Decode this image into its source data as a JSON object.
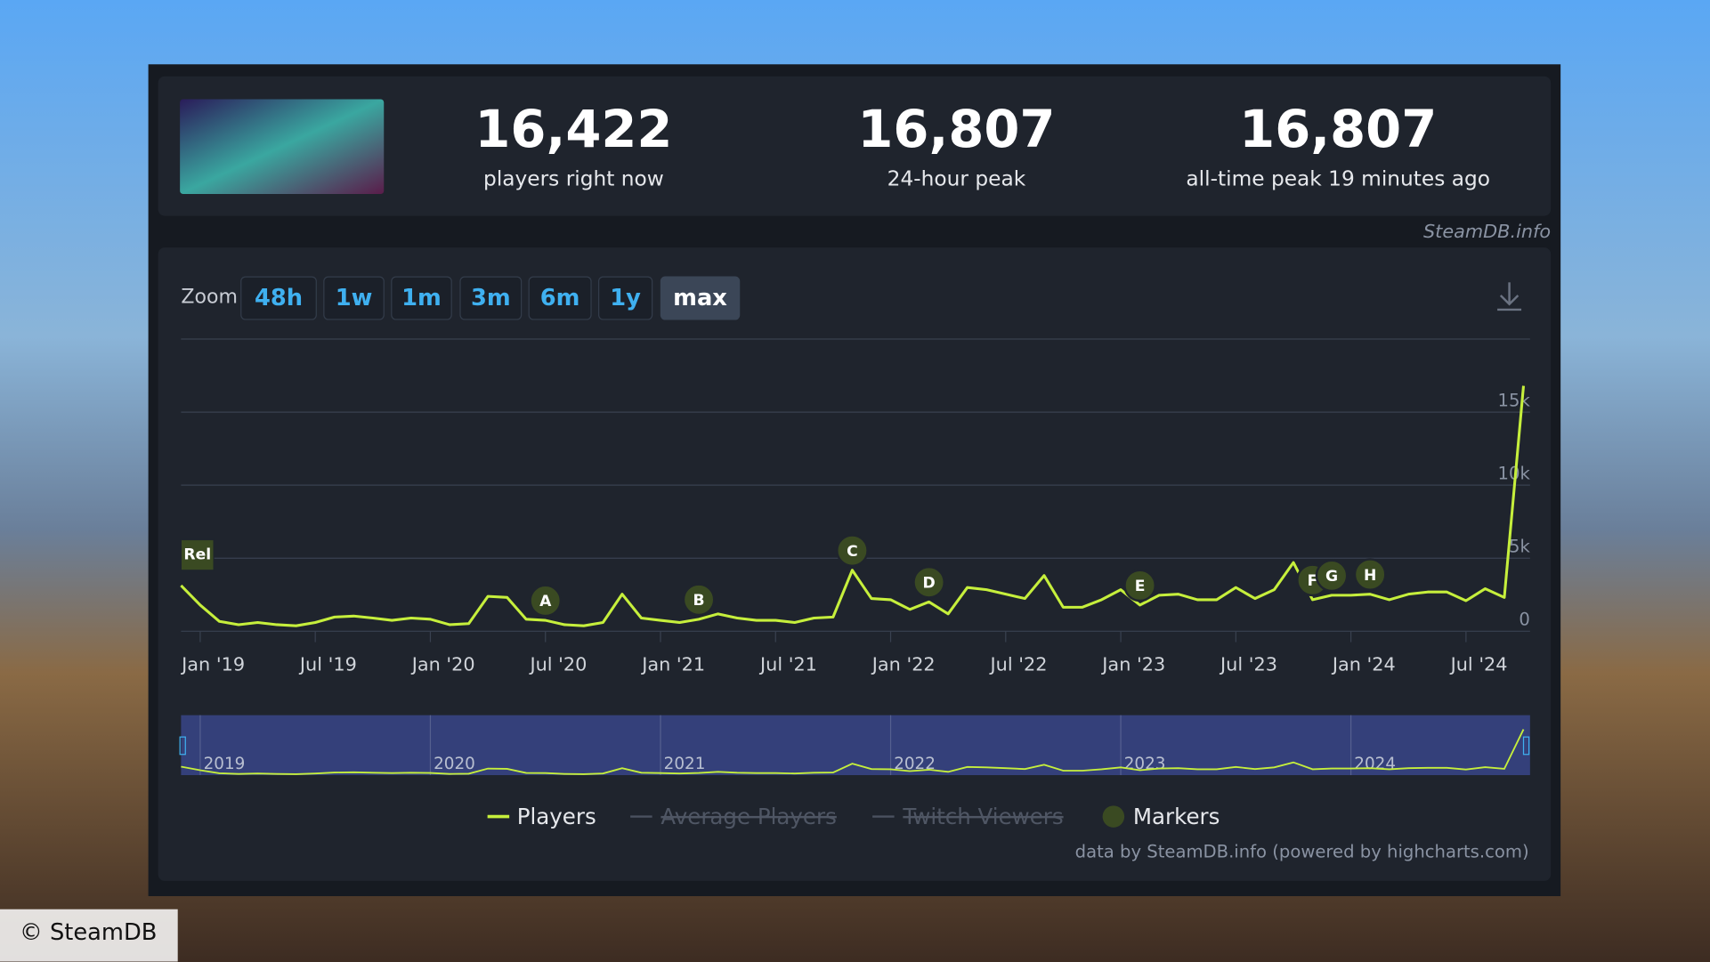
{
  "header": {
    "stats": [
      {
        "value": "16,422",
        "label": "players right now"
      },
      {
        "value": "16,807",
        "label": "24-hour peak"
      },
      {
        "value": "16,807",
        "label": "all-time peak 19 minutes ago"
      }
    ],
    "source": "SteamDB.info"
  },
  "toolbar": {
    "zoom_label": "Zoom",
    "buttons": [
      "48h",
      "1w",
      "1m",
      "3m",
      "6m",
      "1y",
      "max"
    ],
    "active": 6
  },
  "chart_data": {
    "type": "line",
    "x": [
      "2018-12",
      "2019-01",
      "2019-02",
      "2019-03",
      "2019-04",
      "2019-05",
      "2019-06",
      "2019-07",
      "2019-08",
      "2019-09",
      "2019-10",
      "2019-11",
      "2019-12",
      "2020-01",
      "2020-02",
      "2020-03",
      "2020-04",
      "2020-05",
      "2020-06",
      "2020-07",
      "2020-08",
      "2020-09",
      "2020-10",
      "2020-11",
      "2020-12",
      "2021-01",
      "2021-02",
      "2021-03",
      "2021-04",
      "2021-05",
      "2021-06",
      "2021-07",
      "2021-08",
      "2021-09",
      "2021-10",
      "2021-11",
      "2021-12",
      "2022-01",
      "2022-02",
      "2022-03",
      "2022-04",
      "2022-05",
      "2022-06",
      "2022-07",
      "2022-08",
      "2022-09",
      "2022-10",
      "2022-11",
      "2022-12",
      "2023-01",
      "2023-02",
      "2023-03",
      "2023-04",
      "2023-05",
      "2023-06",
      "2023-07",
      "2023-08",
      "2023-09",
      "2023-10",
      "2023-11",
      "2023-12",
      "2024-01",
      "2024-02",
      "2024-03",
      "2024-04",
      "2024-05",
      "2024-06",
      "2024-07",
      "2024-08",
      "2024-09",
      "2024-10"
    ],
    "series": [
      {
        "name": "Players",
        "color": "#c6ef3c",
        "values": [
          3130,
          1790,
          670,
          450,
          600,
          450,
          370,
          600,
          970,
          1040,
          900,
          750,
          900,
          820,
          450,
          520,
          2390,
          2310,
          820,
          750,
          450,
          370,
          600,
          2540,
          900,
          750,
          600,
          820,
          1190,
          900,
          750,
          750,
          600,
          900,
          970,
          4180,
          2240,
          2160,
          1490,
          2010,
          1190,
          2990,
          2840,
          2540,
          2240,
          3810,
          1640,
          1640,
          2160,
          2840,
          1790,
          2460,
          2540,
          2160,
          2160,
          2990,
          2240,
          2840,
          4700,
          2160,
          2460,
          2460,
          2540,
          2160,
          2540,
          2690,
          2690,
          2090,
          2910,
          2310,
          16800
        ]
      }
    ],
    "xlim": [
      "2018-12",
      "2024-10"
    ],
    "xticks": [
      {
        "value": "2019-01",
        "label": "Jan '19"
      },
      {
        "value": "2019-07",
        "label": "Jul '19"
      },
      {
        "value": "2020-01",
        "label": "Jan '20"
      },
      {
        "value": "2020-07",
        "label": "Jul '20"
      },
      {
        "value": "2021-01",
        "label": "Jan '21"
      },
      {
        "value": "2021-07",
        "label": "Jul '21"
      },
      {
        "value": "2022-01",
        "label": "Jan '22"
      },
      {
        "value": "2022-07",
        "label": "Jul '22"
      },
      {
        "value": "2023-01",
        "label": "Jan '23"
      },
      {
        "value": "2023-07",
        "label": "Jul '23"
      },
      {
        "value": "2024-01",
        "label": "Jan '24"
      },
      {
        "value": "2024-07",
        "label": "Jul '24"
      }
    ],
    "ylim": [
      0,
      20000
    ],
    "yticks": [
      0,
      {
        "value": 5000,
        "label": "5k"
      },
      {
        "value": 10000,
        "label": "10k"
      },
      {
        "value": 15000,
        "label": "15k"
      }
    ],
    "grid": true,
    "markers": [
      {
        "label": "Rel",
        "x": "2018-12"
      },
      {
        "label": "A",
        "x": "2020-07"
      },
      {
        "label": "B",
        "x": "2021-03"
      },
      {
        "label": "C",
        "x": "2021-11"
      },
      {
        "label": "D",
        "x": "2022-03"
      },
      {
        "label": "E",
        "x": "2023-02"
      },
      {
        "label": "F",
        "x": "2023-11"
      },
      {
        "label": "G",
        "x": "2023-12"
      },
      {
        "label": "H",
        "x": "2024-02"
      }
    ],
    "navigator_ticks": [
      {
        "value": "2019-01",
        "label": "2019"
      },
      {
        "value": "2020-01",
        "label": "2020"
      },
      {
        "value": "2021-01",
        "label": "2021"
      },
      {
        "value": "2022-01",
        "label": "2022"
      },
      {
        "value": "2023-01",
        "label": "2023"
      },
      {
        "value": "2024-01",
        "label": "2024"
      }
    ],
    "legend_items": [
      {
        "name": "Average Players",
        "hidden": true
      },
      {
        "name": "Twitch Viewers",
        "hidden": true
      },
      {
        "name": "Markers",
        "hidden": false
      }
    ]
  },
  "credits": "data by SteamDB.info (powered by highcharts.com)",
  "watermark": "© SteamDB"
}
